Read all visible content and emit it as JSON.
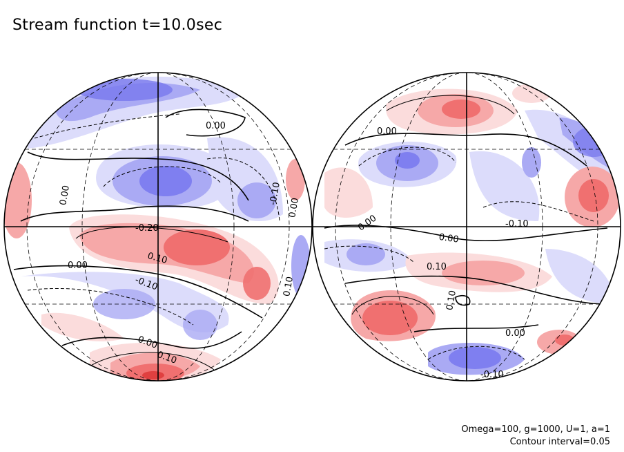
{
  "title": "Stream function t=10.0sec",
  "footer": {
    "params": "Omega=100, g=1000, U=1, a=1",
    "interval": "Contour interval=0.05"
  },
  "colors": {
    "positive_strong": "#f07070",
    "positive_mid": "#f6a8a8",
    "positive_weak": "#fbdcdc",
    "negative_strong": "#7878ee",
    "negative_mid": "#aaaaf4",
    "negative_weak": "#dcdcfb",
    "background": "#ffffff",
    "line": "#000000"
  },
  "left_globe": {
    "labels": [
      "0.00",
      "0.00",
      "-0.10",
      "0.00",
      "-0.20",
      "0.10",
      "0.00",
      "-0.10",
      "0.10",
      "0.00",
      "0.10"
    ]
  },
  "right_globe": {
    "labels": [
      "0.00",
      "0.00",
      "-0.10",
      "0.00",
      "0.10",
      "0.10",
      "0.00",
      "-0.10"
    ]
  }
}
